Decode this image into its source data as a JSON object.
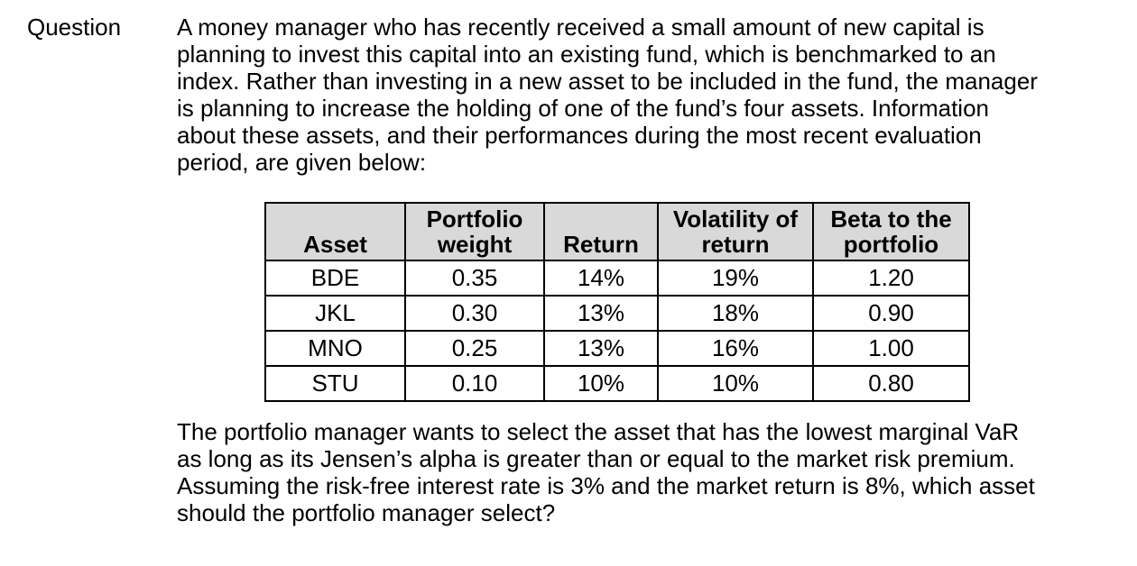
{
  "question": {
    "label": "Question",
    "intro_lines": [
      "A money manager who has recently received a small amount of new capital is",
      "planning to invest this capital into an existing fund, which is benchmarked to an",
      "index. Rather than investing in a new asset to be included in the fund, the manager",
      "is planning to increase the holding of one of the fund’s four assets. Information",
      "about these assets, and their performances during the most recent evaluation",
      "period, are given below:"
    ],
    "question_lines": [
      "The portfolio manager wants to select the asset that has the lowest marginal VaR",
      "as long as its Jensen’s alpha is greater than or equal to the market risk premium.",
      "Assuming the risk-free interest rate is 3% and the market return is 8%, which asset",
      "should the portfolio manager select?"
    ]
  },
  "table": {
    "headers": [
      {
        "line1": "Asset"
      },
      {
        "line1": "Portfolio",
        "line2": "weight"
      },
      {
        "line1": "Return"
      },
      {
        "line1": "Volatility of",
        "line2": "return"
      },
      {
        "line1": "Beta to the",
        "line2": "portfolio"
      }
    ],
    "rows": [
      {
        "asset": "BDE",
        "portfolio_weight": "0.35",
        "return": "14%",
        "volatility_of_return": "19%",
        "beta_to_portfolio": "1.20"
      },
      {
        "asset": "JKL",
        "portfolio_weight": "0.30",
        "return": "13%",
        "volatility_of_return": "18%",
        "beta_to_portfolio": "0.90"
      },
      {
        "asset": "MNO",
        "portfolio_weight": "0.25",
        "return": "13%",
        "volatility_of_return": "16%",
        "beta_to_portfolio": "1.00"
      },
      {
        "asset": "STU",
        "portfolio_weight": "0.10",
        "return": "10%",
        "volatility_of_return": "10%",
        "beta_to_portfolio": "0.80"
      }
    ]
  },
  "colors": {
    "page_background": "#ffffff",
    "text": "#000000",
    "table_border": "#000000",
    "header_background": "#d9d9d9"
  }
}
